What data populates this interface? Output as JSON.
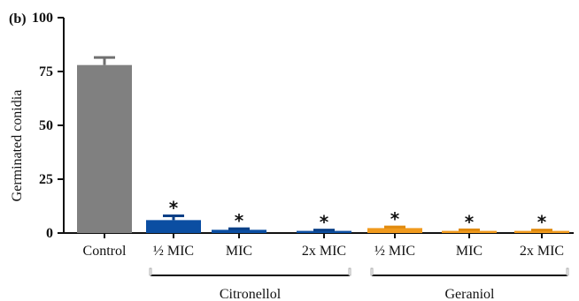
{
  "chart_data": {
    "type": "bar",
    "panel_label": "(b)",
    "ylabel": "Germinated conidia",
    "ylim": [
      0,
      100
    ],
    "yticks": [
      "0",
      "25",
      "50",
      "75",
      "100"
    ],
    "categories": [
      "Control",
      "½ MIC",
      "MIC",
      "2x MIC",
      "½ MIC",
      "MIC",
      "2x MIC"
    ],
    "values": [
      78,
      6,
      1.5,
      1,
      2.3,
      1,
      1
    ],
    "errors": [
      3.5,
      2,
      0.5,
      0.4,
      0.5,
      0.5,
      0.4
    ],
    "significance": [
      "",
      "*",
      "*",
      "*",
      "*",
      "*",
      "*"
    ],
    "colors": [
      "#808080",
      "#0b4ea2",
      "#0b4ea2",
      "#0b4ea2",
      "#f09a1d",
      "#f09a1d",
      "#f09a1d"
    ],
    "error_colors": [
      "#707070",
      "#0a3f86",
      "#0a3f86",
      "#0a3f86",
      "#e08a0e",
      "#e08a0e",
      "#e08a0e"
    ],
    "groups": [
      {
        "label": "Citronellol",
        "members": [
          1,
          2,
          3
        ]
      },
      {
        "label": "Geraniol",
        "members": [
          4,
          5,
          6
        ]
      }
    ]
  }
}
